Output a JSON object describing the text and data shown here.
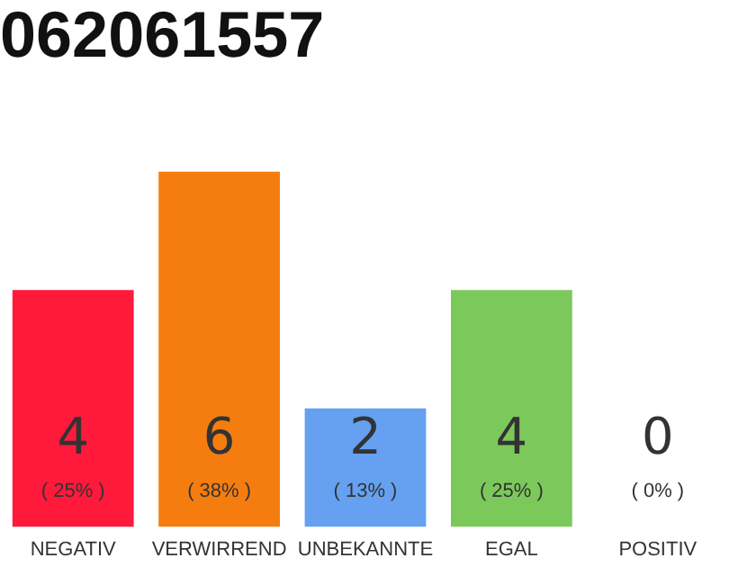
{
  "chart_data": {
    "type": "bar",
    "title": "062061557",
    "categories": [
      "NEGATIV",
      "VERWIRREND",
      "UNBEKANNTE",
      "EGAL",
      "POSITIV"
    ],
    "values": [
      4,
      6,
      2,
      4,
      0
    ],
    "colors": [
      "#ff1a3c",
      "#f57d0f",
      "#65a1f0",
      "#7cc95b",
      "#7cc95b"
    ],
    "value_labels": [
      "4\n( 25% )",
      "6\n( 38% )",
      "2\n( 13% )",
      "4\n( 25% )",
      "0\n( 0% )"
    ],
    "grid": false,
    "legend": false,
    "tick_labels": "x"
  }
}
